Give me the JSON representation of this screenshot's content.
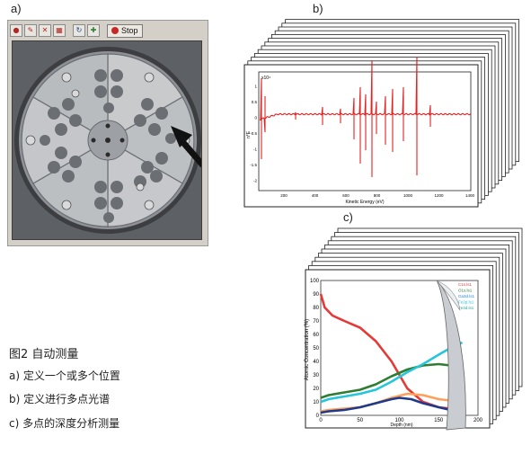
{
  "panel_labels": {
    "a": "a)",
    "b": "b)",
    "c": "c)"
  },
  "toolbar": {
    "stop_label": "Stop"
  },
  "spectrum": {
    "xlabel": "Kinetic Energy (eV)",
    "ylabel": "n*E",
    "exponent": "x10⁴",
    "x_ticks": [
      "200",
      "400",
      "600",
      "800",
      "1000",
      "1200",
      "1400"
    ],
    "y_ticks": [
      "1",
      "0.5",
      "0",
      "-0.5",
      "-1",
      "-1.5",
      "-2"
    ]
  },
  "depth_profile": {
    "ylabel": "Atomic Concentration (%)",
    "xlabel": "Depth (nm)",
    "y_ticks": [
      "100",
      "90",
      "80",
      "70",
      "60",
      "50",
      "40",
      "30",
      "20",
      "10",
      "0"
    ],
    "x_ticks": [
      "0",
      "50",
      "100",
      "150",
      "200"
    ],
    "legend": [
      {
        "label": "C1s.ls1",
        "color": "#e53935"
      },
      {
        "label": "O1s.ls1",
        "color": "#2e7d32"
      },
      {
        "label": "Ga3d.ls1",
        "color": "#1e88e5"
      },
      {
        "label": "Fe2p.ls1",
        "color": "#26c6da"
      },
      {
        "label": "Fe3d.ls1",
        "color": "#26a69a"
      }
    ]
  },
  "chart_data": {
    "type": "line",
    "title": "",
    "xlabel": "Depth (nm)",
    "ylabel": "Atomic Concentration (%)",
    "xlim": [
      0,
      200
    ],
    "ylim": [
      0,
      100
    ],
    "series": [
      {
        "color": "#e53935",
        "x": [
          0,
          5,
          15,
          30,
          50,
          70,
          90,
          110,
          130,
          150,
          165,
          180
        ],
        "y": [
          90,
          80,
          74,
          70,
          65,
          55,
          40,
          20,
          10,
          6,
          5,
          4
        ]
      },
      {
        "color": "#2e7d32",
        "x": [
          0,
          10,
          30,
          50,
          70,
          90,
          110,
          130,
          150,
          165,
          180
        ],
        "y": [
          13,
          15,
          17,
          19,
          23,
          29,
          34,
          37,
          38,
          37,
          35
        ]
      },
      {
        "color": "#26c6da",
        "x": [
          0,
          10,
          30,
          50,
          70,
          90,
          110,
          130,
          150,
          165,
          180
        ],
        "y": [
          10,
          12,
          14,
          16,
          19,
          25,
          32,
          38,
          45,
          50,
          54
        ]
      },
      {
        "color": "#ff9f5a",
        "x": [
          0,
          10,
          30,
          50,
          70,
          90,
          110,
          130,
          150,
          165,
          180
        ],
        "y": [
          3,
          4,
          5,
          6,
          9,
          13,
          16,
          15,
          12,
          11,
          10
        ]
      },
      {
        "color": "#1e3a8a",
        "x": [
          0,
          10,
          30,
          50,
          70,
          90,
          100,
          115,
          130,
          150,
          165,
          180
        ],
        "y": [
          2,
          3,
          4,
          6,
          9,
          12,
          13,
          12,
          9,
          6,
          4,
          3
        ]
      }
    ]
  },
  "caption": {
    "title": "图2 自动测量",
    "line_a": "a) 定义一个或多个位置",
    "line_b": "b) 定义进行多点光谱",
    "line_c": "c) 多点的深度分析测量"
  }
}
